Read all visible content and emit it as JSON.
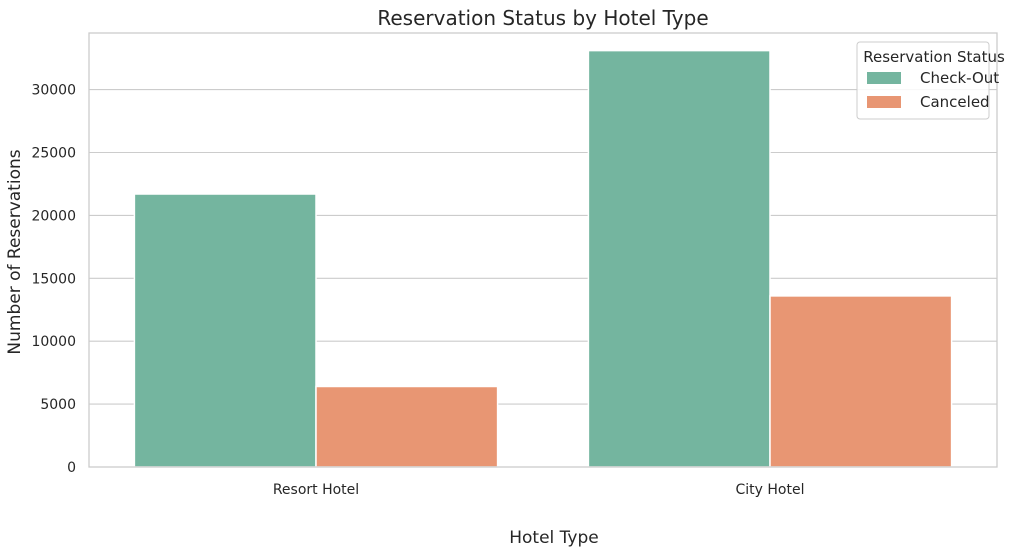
{
  "chart_data": {
    "type": "bar",
    "title": "Reservation Status by Hotel Type",
    "xlabel": "Hotel Type",
    "ylabel": "Number of Reservations",
    "categories": [
      "Resort Hotel",
      "City Hotel"
    ],
    "series": [
      {
        "name": "Check-Out",
        "values": [
          21700,
          33100
        ],
        "color": "#74b59f"
      },
      {
        "name": "Canceled",
        "values": [
          6400,
          13600
        ],
        "color": "#e89673"
      }
    ],
    "ylim": [
      0,
      34500
    ],
    "yticks": [
      0,
      5000,
      10000,
      15000,
      20000,
      25000,
      30000
    ],
    "grid": "horizontal",
    "legend": {
      "title": "Reservation Status",
      "placement": "top-right"
    }
  }
}
